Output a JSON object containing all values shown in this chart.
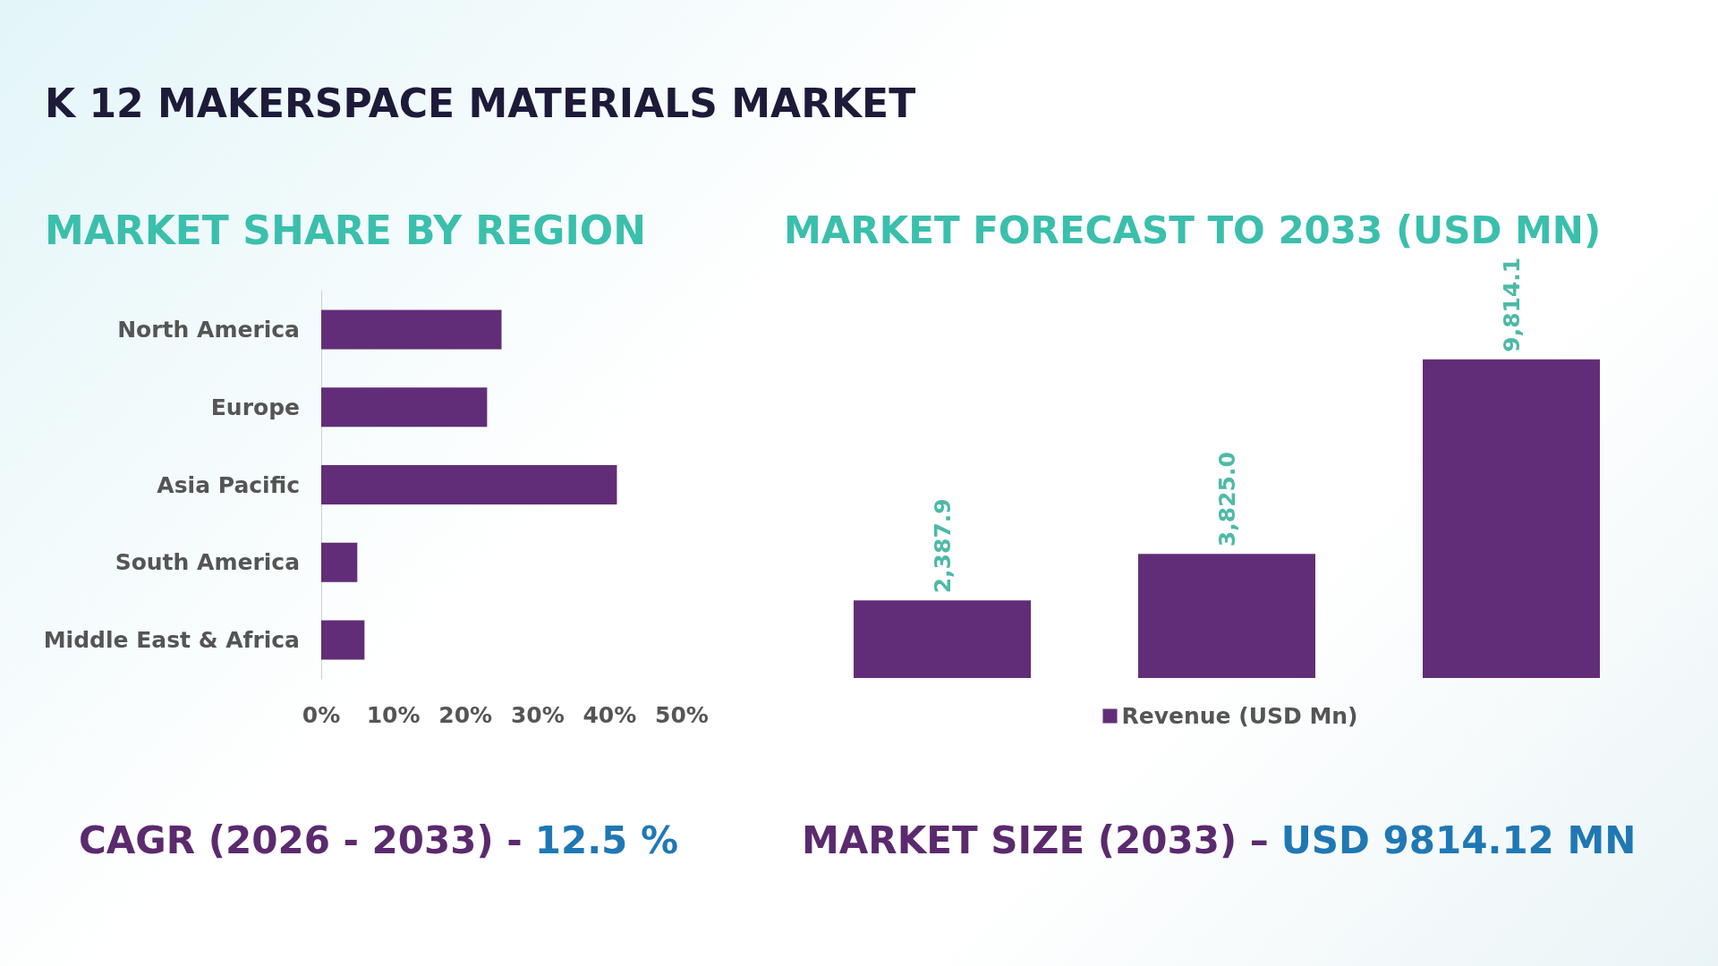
{
  "chart_data": [
    {
      "type": "bar",
      "orientation": "horizontal",
      "title": "K 12 MAKERSPACE MATERIALS MARKET",
      "subtitle": "MARKET SHARE BY REGION",
      "categories": [
        "North America",
        "Europe",
        "Asia Pacific",
        "South America",
        "Middle East & Africa"
      ],
      "values": [
        25,
        23,
        41,
        5,
        6
      ],
      "color": "#622d78",
      "xlim": [
        0,
        50
      ],
      "xticks": [
        {
          "value": 0,
          "label": "0%"
        },
        {
          "value": 10,
          "label": "10%"
        },
        {
          "value": 20,
          "label": "20%"
        },
        {
          "value": 30,
          "label": "30%"
        },
        {
          "value": 40,
          "label": "40%"
        },
        {
          "value": 50,
          "label": "50%"
        }
      ],
      "grid": false,
      "annotations": [
        "CAGR (2026 - 2033) -",
        "12.5 %"
      ]
    },
    {
      "type": "bar",
      "title": "MARKET FORECAST TO 2033 (USD MN)",
      "categories": [
        null,
        null,
        null
      ],
      "series": [
        {
          "name": "Revenue (USD Mn)",
          "color": "#622d78",
          "values": [
            2387.9,
            3825.0,
            9814.1
          ],
          "value_labels": [
            "2,387.9",
            "3,825.0",
            "9,814.1"
          ]
        }
      ],
      "legend": "bottom",
      "annotations": [
        "MARKET SIZE (2033) –",
        "USD 9814.12 MN"
      ]
    }
  ]
}
